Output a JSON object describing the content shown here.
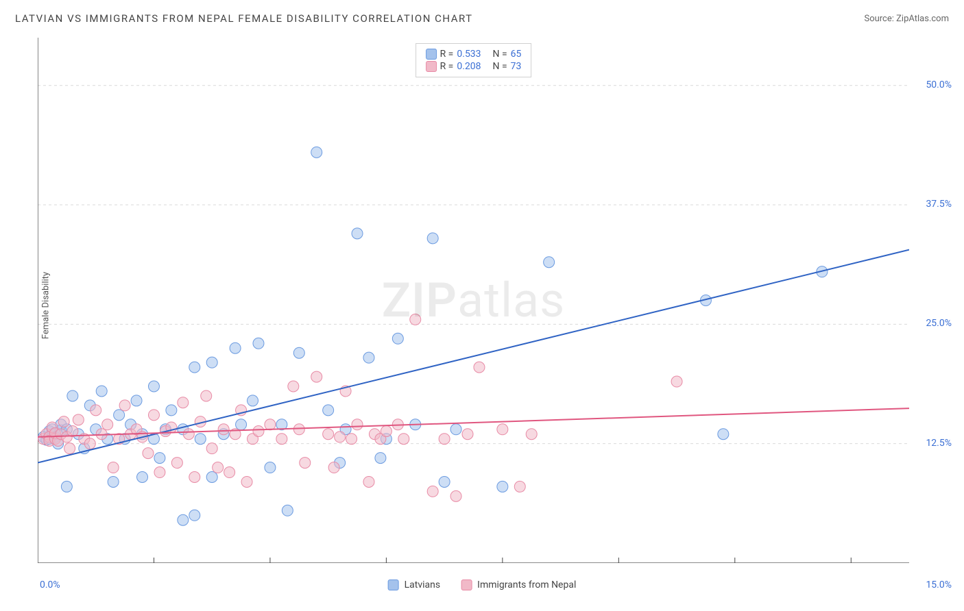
{
  "header": {
    "title": "LATVIAN VS IMMIGRANTS FROM NEPAL FEMALE DISABILITY CORRELATION CHART",
    "source_prefix": "Source: ",
    "source_name": "ZipAtlas.com"
  },
  "watermark": {
    "zip": "ZIP",
    "rest": "atlas"
  },
  "y_axis": {
    "label": "Female Disability"
  },
  "chart": {
    "type": "scatter",
    "background_color": "#ffffff",
    "gridline_color": "#d9d9d9",
    "axis_color": "#444444",
    "tick_label_color": "#3b6fd4",
    "xlim": [
      0,
      15
    ],
    "ylim": [
      0,
      55
    ],
    "x_ticks": [
      0,
      2,
      4,
      6,
      8,
      10,
      12,
      14
    ],
    "y_ticks": [
      12.5,
      25.0,
      37.5,
      50.0
    ],
    "y_tick_labels": [
      "12.5%",
      "25.0%",
      "37.5%",
      "50.0%"
    ],
    "x_min_label": "0.0%",
    "x_max_label": "15.0%",
    "marker_radius": 8,
    "marker_opacity": 0.55,
    "line_width": 2,
    "series": [
      {
        "key": "latvians",
        "label": "Latvians",
        "fill_color": "#a4c2ec",
        "stroke_color": "#6a9ae0",
        "line_color": "#2f63c4",
        "r_value": "0.533",
        "n_value": "65",
        "trend": {
          "x1": 0,
          "y1": 10.5,
          "x2": 15,
          "y2": 32.8
        },
        "points": [
          [
            0.1,
            13.2
          ],
          [
            0.15,
            12.9
          ],
          [
            0.2,
            13.8
          ],
          [
            0.2,
            13.0
          ],
          [
            0.25,
            14.0
          ],
          [
            0.3,
            13.5
          ],
          [
            0.3,
            13.2
          ],
          [
            0.35,
            12.5
          ],
          [
            0.4,
            13.9
          ],
          [
            0.4,
            14.5
          ],
          [
            0.5,
            14.0
          ],
          [
            0.5,
            8.0
          ],
          [
            0.6,
            17.5
          ],
          [
            0.7,
            13.5
          ],
          [
            0.8,
            12.0
          ],
          [
            0.9,
            16.5
          ],
          [
            1.0,
            14.0
          ],
          [
            1.1,
            18.0
          ],
          [
            1.2,
            13.0
          ],
          [
            1.3,
            8.5
          ],
          [
            1.4,
            15.5
          ],
          [
            1.5,
            13.0
          ],
          [
            1.6,
            14.5
          ],
          [
            1.7,
            17.0
          ],
          [
            1.8,
            13.5
          ],
          [
            1.8,
            9.0
          ],
          [
            2.0,
            18.5
          ],
          [
            2.0,
            13.0
          ],
          [
            2.1,
            11.0
          ],
          [
            2.2,
            14.0
          ],
          [
            2.3,
            16.0
          ],
          [
            2.5,
            4.5
          ],
          [
            2.5,
            14.0
          ],
          [
            2.7,
            5.0
          ],
          [
            2.7,
            20.5
          ],
          [
            2.8,
            13.0
          ],
          [
            3.0,
            21.0
          ],
          [
            3.0,
            9.0
          ],
          [
            3.2,
            13.5
          ],
          [
            3.4,
            22.5
          ],
          [
            3.5,
            14.5
          ],
          [
            3.7,
            17.0
          ],
          [
            3.8,
            23.0
          ],
          [
            4.0,
            10.0
          ],
          [
            4.2,
            14.5
          ],
          [
            4.3,
            5.5
          ],
          [
            4.5,
            22.0
          ],
          [
            4.8,
            43.0
          ],
          [
            5.0,
            16.0
          ],
          [
            5.2,
            10.5
          ],
          [
            5.3,
            14.0
          ],
          [
            5.5,
            34.5
          ],
          [
            5.7,
            21.5
          ],
          [
            5.9,
            11.0
          ],
          [
            6.0,
            13.0
          ],
          [
            6.2,
            23.5
          ],
          [
            6.5,
            14.5
          ],
          [
            6.8,
            34.0
          ],
          [
            7.0,
            8.5
          ],
          [
            7.2,
            14.0
          ],
          [
            8.0,
            8.0
          ],
          [
            8.8,
            31.5
          ],
          [
            11.5,
            27.5
          ],
          [
            13.5,
            30.5
          ],
          [
            11.8,
            13.5
          ]
        ]
      },
      {
        "key": "nepal",
        "label": "Immigrants from Nepal",
        "fill_color": "#f1b9c8",
        "stroke_color": "#e88aa5",
        "line_color": "#e0567f",
        "r_value": "0.208",
        "n_value": "73",
        "trend": {
          "x1": 0,
          "y1": 13.2,
          "x2": 15,
          "y2": 16.2
        },
        "points": [
          [
            0.1,
            13.0
          ],
          [
            0.15,
            13.5
          ],
          [
            0.2,
            13.2
          ],
          [
            0.2,
            12.8
          ],
          [
            0.25,
            14.2
          ],
          [
            0.3,
            13.0
          ],
          [
            0.3,
            13.6
          ],
          [
            0.35,
            12.8
          ],
          [
            0.4,
            13.5
          ],
          [
            0.45,
            14.8
          ],
          [
            0.5,
            13.2
          ],
          [
            0.55,
            12.0
          ],
          [
            0.6,
            13.8
          ],
          [
            0.7,
            15.0
          ],
          [
            0.8,
            13.0
          ],
          [
            0.9,
            12.5
          ],
          [
            1.0,
            16.0
          ],
          [
            1.1,
            13.5
          ],
          [
            1.2,
            14.5
          ],
          [
            1.3,
            10.0
          ],
          [
            1.4,
            13.0
          ],
          [
            1.5,
            16.5
          ],
          [
            1.6,
            13.5
          ],
          [
            1.7,
            14.0
          ],
          [
            1.8,
            13.2
          ],
          [
            1.9,
            11.5
          ],
          [
            2.0,
            15.5
          ],
          [
            2.1,
            9.5
          ],
          [
            2.2,
            13.8
          ],
          [
            2.3,
            14.2
          ],
          [
            2.4,
            10.5
          ],
          [
            2.5,
            16.8
          ],
          [
            2.6,
            13.5
          ],
          [
            2.7,
            9.0
          ],
          [
            2.8,
            14.8
          ],
          [
            2.9,
            17.5
          ],
          [
            3.0,
            12.0
          ],
          [
            3.1,
            10.0
          ],
          [
            3.2,
            14.0
          ],
          [
            3.3,
            9.5
          ],
          [
            3.4,
            13.5
          ],
          [
            3.5,
            16.0
          ],
          [
            3.6,
            8.5
          ],
          [
            3.7,
            13.0
          ],
          [
            3.8,
            13.8
          ],
          [
            4.0,
            14.5
          ],
          [
            4.2,
            13.0
          ],
          [
            4.4,
            18.5
          ],
          [
            4.5,
            14.0
          ],
          [
            4.6,
            10.5
          ],
          [
            4.8,
            19.5
          ],
          [
            5.0,
            13.5
          ],
          [
            5.1,
            10.0
          ],
          [
            5.3,
            18.0
          ],
          [
            5.4,
            13.0
          ],
          [
            5.5,
            14.5
          ],
          [
            5.7,
            8.5
          ],
          [
            5.8,
            13.5
          ],
          [
            5.9,
            13.0
          ],
          [
            6.0,
            13.8
          ],
          [
            6.2,
            14.5
          ],
          [
            6.3,
            13.0
          ],
          [
            6.5,
            25.5
          ],
          [
            6.8,
            7.5
          ],
          [
            7.0,
            13.0
          ],
          [
            7.2,
            7.0
          ],
          [
            7.4,
            13.5
          ],
          [
            7.6,
            20.5
          ],
          [
            8.0,
            14.0
          ],
          [
            8.3,
            8.0
          ],
          [
            8.5,
            13.5
          ],
          [
            11.0,
            19.0
          ],
          [
            5.2,
            13.2
          ]
        ]
      }
    ]
  },
  "legend_top": {
    "r_label": "R =",
    "n_label": "N ="
  },
  "legend_bottom": {
    "items": [
      "latvians",
      "nepal"
    ]
  }
}
